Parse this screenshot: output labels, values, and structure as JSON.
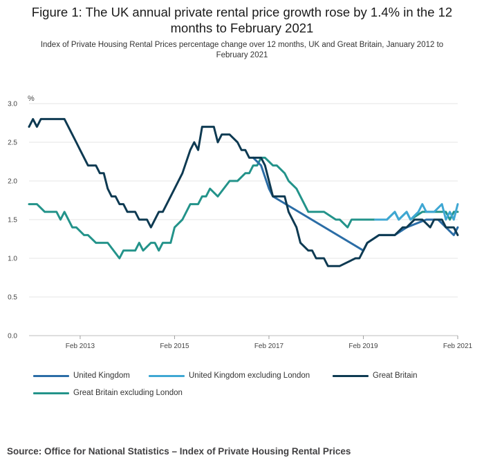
{
  "title_lines": [
    "Figure 1: The UK annual private rental price growth rose by 1.4% in the 12",
    "months to February 2021"
  ],
  "subtitle_lines": [
    "Index of Private Housing Rental Prices percentage change over 12 months, UK and Great Britain, January 2012 to",
    "February 2021"
  ],
  "source": "Source: Office for National Statistics – Index of Private Housing Rental Prices",
  "chart_data": {
    "type": "line",
    "unit_label": "%",
    "ylim": [
      0,
      3
    ],
    "yticks": [
      "0.0",
      "0.5",
      "1.0",
      "1.5",
      "2.0",
      "2.5",
      "3.0"
    ],
    "x_start": "2012-01",
    "x_end": "2021-02",
    "xticks": [
      {
        "label": "Feb 2013",
        "date": "2013-02"
      },
      {
        "label": "Feb 2015",
        "date": "2015-02"
      },
      {
        "label": "Feb 2017",
        "date": "2017-02"
      },
      {
        "label": "Feb 2019",
        "date": "2019-02"
      },
      {
        "label": "Feb 2021",
        "date": "2021-02"
      }
    ],
    "grid": "horizontal",
    "legend_position": "bottom",
    "series": [
      {
        "name": "Great Britain excluding London",
        "color": "#23938a",
        "x": [
          "2012-01",
          "2012-03",
          "2012-05",
          "2012-08",
          "2012-09",
          "2012-10",
          "2012-12",
          "2013-01",
          "2013-03",
          "2013-04",
          "2013-06",
          "2013-07",
          "2013-08",
          "2013-09",
          "2013-12",
          "2014-01",
          "2014-04",
          "2014-05",
          "2014-06",
          "2014-08",
          "2014-09",
          "2014-10",
          "2014-11",
          "2015-01",
          "2015-02",
          "2015-04",
          "2015-06",
          "2015-08",
          "2015-09",
          "2015-10",
          "2015-11",
          "2016-01",
          "2016-04",
          "2016-06",
          "2016-08",
          "2016-09",
          "2016-10",
          "2016-11",
          "2016-12",
          "2017-01",
          "2017-03",
          "2017-04",
          "2017-06",
          "2017-07",
          "2017-09",
          "2017-12",
          "2018-03",
          "2018-04",
          "2018-07",
          "2018-08",
          "2018-10",
          "2018-11",
          "2019-01",
          "2019-02",
          "2019-05",
          "2019-08",
          "2019-10",
          "2019-11",
          "2020-01",
          "2020-02",
          "2020-05",
          "2020-06",
          "2020-11",
          "2020-12",
          "2021-01",
          "2021-02"
        ],
        "y": [
          1.7,
          1.7,
          1.6,
          1.6,
          1.5,
          1.6,
          1.4,
          1.4,
          1.3,
          1.3,
          1.2,
          1.2,
          1.2,
          1.2,
          1.0,
          1.1,
          1.1,
          1.2,
          1.1,
          1.2,
          1.2,
          1.1,
          1.2,
          1.2,
          1.4,
          1.5,
          1.7,
          1.7,
          1.8,
          1.8,
          1.9,
          1.8,
          2.0,
          2.0,
          2.1,
          2.1,
          2.2,
          2.2,
          2.3,
          2.3,
          2.2,
          2.2,
          2.1,
          2.0,
          1.9,
          1.6,
          1.6,
          1.6,
          1.5,
          1.5,
          1.4,
          1.5,
          1.5,
          1.5,
          1.5,
          1.5,
          1.6,
          1.5,
          1.6,
          1.5,
          1.6,
          1.6,
          1.6,
          1.5,
          1.6,
          1.6
        ]
      },
      {
        "name": "United Kingdom excluding London",
        "color": "#3fa7d3",
        "x": [
          "2019-05",
          "2019-08",
          "2019-10",
          "2019-11",
          "2020-01",
          "2020-02",
          "2020-04",
          "2020-05",
          "2020-06",
          "2020-08",
          "2020-10",
          "2020-11",
          "2020-12",
          "2021-01",
          "2021-02"
        ],
        "y": [
          1.5,
          1.5,
          1.6,
          1.5,
          1.6,
          1.5,
          1.6,
          1.7,
          1.6,
          1.6,
          1.7,
          1.5,
          1.6,
          1.5,
          1.7
        ]
      },
      {
        "name": "United Kingdom",
        "color": "#2b6da6",
        "x": [
          "2016-10",
          "2016-12",
          "2017-02",
          "2017-03",
          "2019-02",
          "2019-03",
          "2019-06",
          "2019-07",
          "2019-10",
          "2020-01",
          "2020-06",
          "2020-09",
          "2020-11",
          "2021-01",
          "2021-02"
        ],
        "y": [
          2.3,
          2.2,
          1.9,
          1.8,
          1.1,
          1.2,
          1.3,
          1.3,
          1.3,
          1.4,
          1.5,
          1.5,
          1.4,
          1.3,
          1.4
        ]
      },
      {
        "name": "Great Britain",
        "color": "#0e3a52",
        "x": [
          "2012-01",
          "2012-02",
          "2012-03",
          "2012-04",
          "2012-06",
          "2012-10",
          "2012-12",
          "2013-01",
          "2013-02",
          "2013-04",
          "2013-05",
          "2013-06",
          "2013-07",
          "2013-08",
          "2013-09",
          "2013-10",
          "2013-11",
          "2013-12",
          "2014-01",
          "2014-02",
          "2014-04",
          "2014-05",
          "2014-06",
          "2014-07",
          "2014-08",
          "2014-10",
          "2014-11",
          "2015-01",
          "2015-02",
          "2015-04",
          "2015-06",
          "2015-07",
          "2015-08",
          "2015-09",
          "2015-12",
          "2016-01",
          "2016-02",
          "2016-04",
          "2016-06",
          "2016-07",
          "2016-08",
          "2016-09",
          "2016-12",
          "2017-01",
          "2017-02",
          "2017-03",
          "2017-06",
          "2017-07",
          "2017-09",
          "2017-10",
          "2017-12",
          "2018-01",
          "2018-02",
          "2018-04",
          "2018-05",
          "2018-07",
          "2018-08",
          "2018-12",
          "2019-01",
          "2019-03",
          "2019-06",
          "2019-07",
          "2019-10",
          "2019-12",
          "2020-01",
          "2020-03",
          "2020-05",
          "2020-07",
          "2020-08",
          "2020-10",
          "2020-11",
          "2021-01",
          "2021-02"
        ],
        "y": [
          2.7,
          2.8,
          2.7,
          2.8,
          2.8,
          2.8,
          2.6,
          2.5,
          2.4,
          2.2,
          2.2,
          2.2,
          2.1,
          2.1,
          1.9,
          1.8,
          1.8,
          1.7,
          1.7,
          1.6,
          1.6,
          1.5,
          1.5,
          1.5,
          1.4,
          1.6,
          1.6,
          1.8,
          1.9,
          2.1,
          2.4,
          2.5,
          2.4,
          2.7,
          2.7,
          2.5,
          2.6,
          2.6,
          2.5,
          2.4,
          2.4,
          2.3,
          2.3,
          2.2,
          2.0,
          1.8,
          1.8,
          1.6,
          1.4,
          1.2,
          1.1,
          1.1,
          1.0,
          1.0,
          0.9,
          0.9,
          0.9,
          1.0,
          1.0,
          1.2,
          1.3,
          1.3,
          1.3,
          1.4,
          1.4,
          1.5,
          1.5,
          1.4,
          1.5,
          1.5,
          1.4,
          1.4,
          1.3
        ]
      }
    ]
  },
  "legend": [
    {
      "label": "United Kingdom",
      "color": "#2b6da6"
    },
    {
      "label": "United Kingdom excluding London",
      "color": "#3fa7d3"
    },
    {
      "label": "Great Britain",
      "color": "#0e3a52"
    },
    {
      "label": "Great Britain excluding London",
      "color": "#23938a"
    }
  ]
}
